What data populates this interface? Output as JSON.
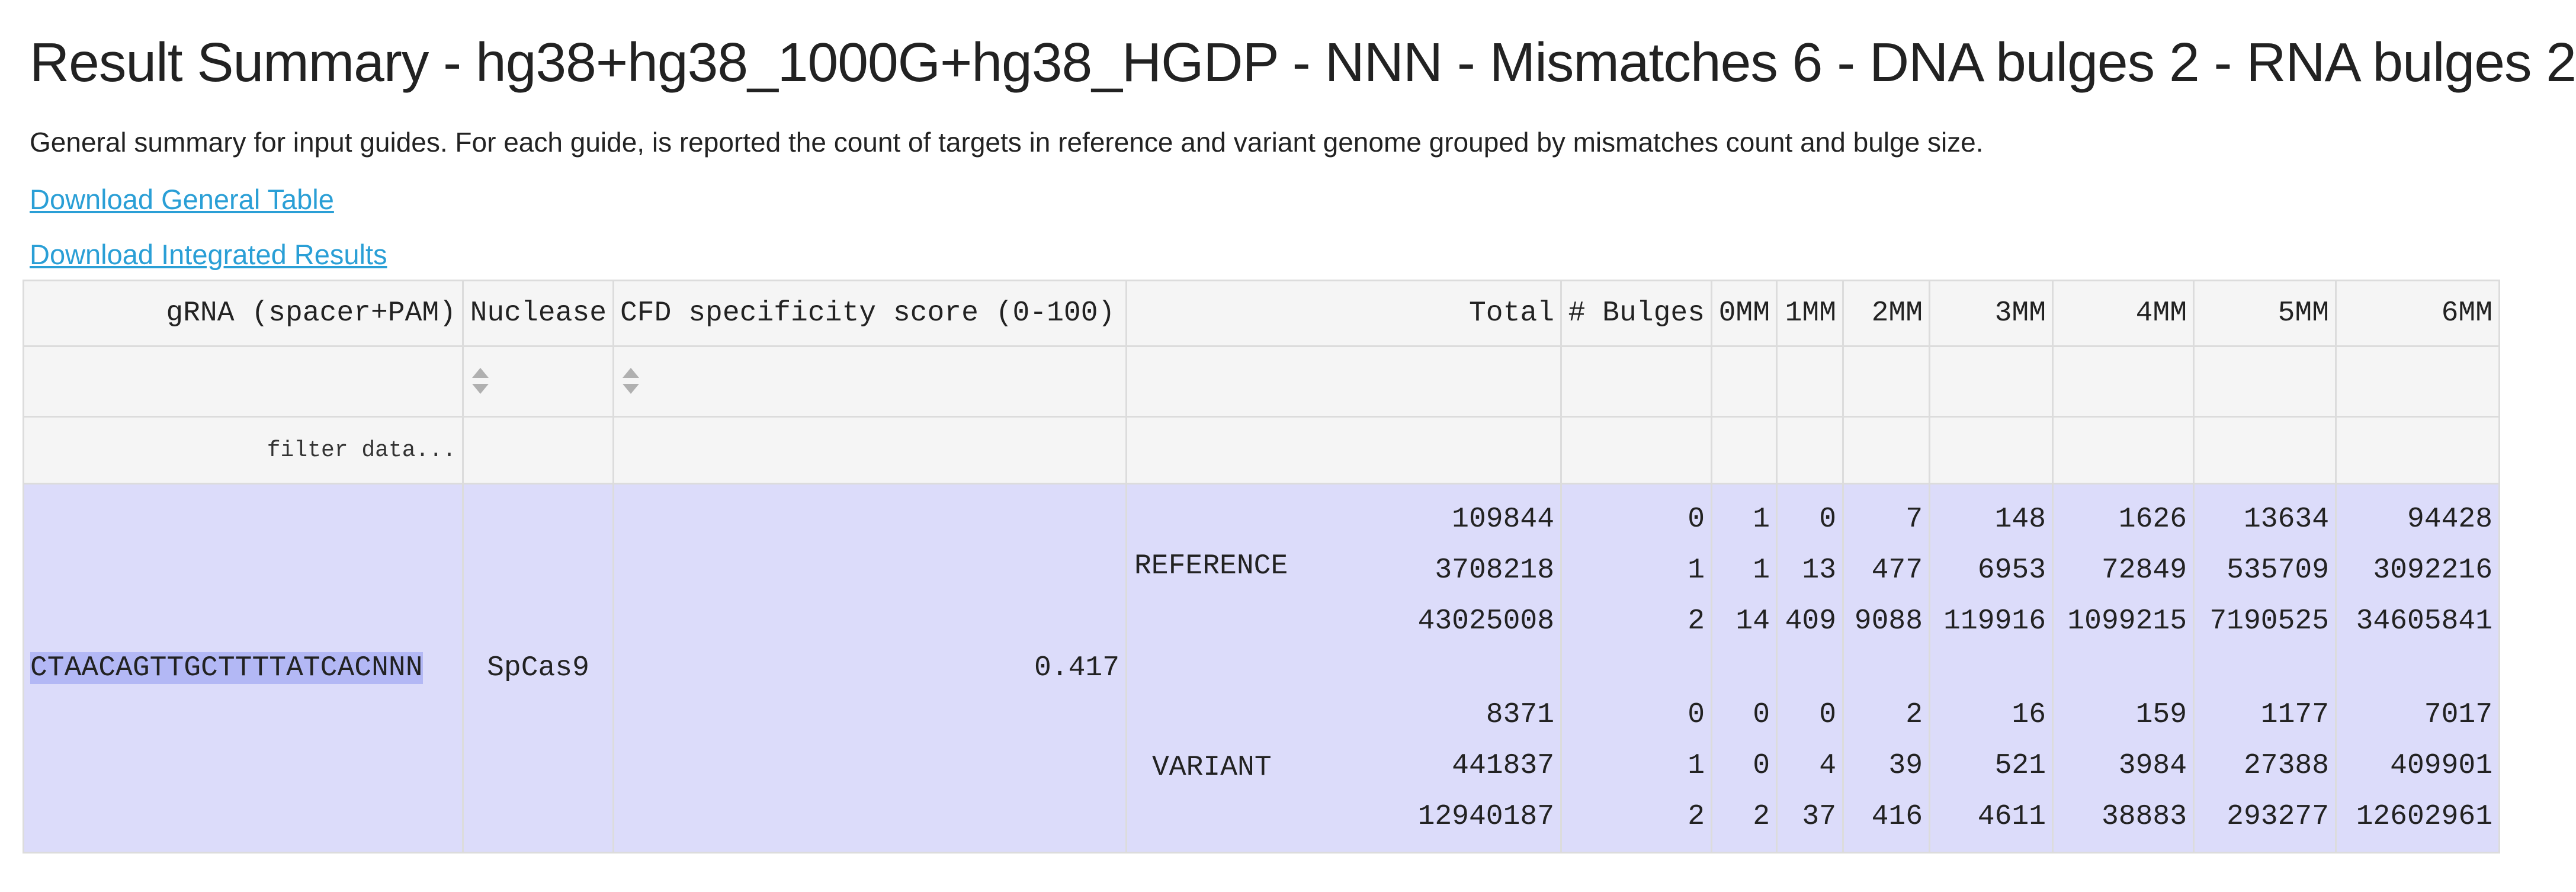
{
  "title": "Result Summary - hg38+hg38_1000G+hg38_HGDP - NNN - Mismatches 6 - DNA bulges 2 - RNA bulges 2",
  "description": "General summary for input guides. For each guide, is reported the count of targets in reference and variant genome grouped by mismatches count and bulge size.",
  "links": {
    "general_table": "Download General Table",
    "integrated_results": "Download Integrated Results"
  },
  "colors": {
    "link": "#2a9fd6",
    "row_background": "#dcdcfa",
    "grna_highlight": "#b3b8f5",
    "header_background": "#f5f5f5"
  },
  "table": {
    "headers": {
      "grna": "gRNA (spacer+PAM)",
      "nuclease": "Nuclease",
      "cfd": "CFD specificity score (0-100)",
      "total": "Total",
      "bulges": "# Bulges",
      "mm0": "0MM",
      "mm1": "1MM",
      "mm2": "2MM",
      "mm3": "3MM",
      "mm4": "4MM",
      "mm5": "5MM",
      "mm6": "6MM"
    },
    "filter_placeholder": "filter data...",
    "row": {
      "grna": "CTAACAGTTGCTTTTATCACNNN",
      "nuclease": "SpCas9",
      "cfd": "0.417",
      "reference_label": "REFERENCE",
      "variant_label": "VARIANT",
      "reference": {
        "total": [
          "109844",
          "3708218",
          "43025008"
        ],
        "bulges": [
          "0",
          "1",
          "2"
        ],
        "mm0": [
          "1",
          "1",
          "14"
        ],
        "mm1": [
          "0",
          "13",
          "409"
        ],
        "mm2": [
          "7",
          "477",
          "9088"
        ],
        "mm3": [
          "148",
          "6953",
          "119916"
        ],
        "mm4": [
          "1626",
          "72849",
          "1099215"
        ],
        "mm5": [
          "13634",
          "535709",
          "7190525"
        ],
        "mm6": [
          "94428",
          "3092216",
          "34605841"
        ]
      },
      "variant": {
        "total": [
          "8371",
          "441837",
          "12940187"
        ],
        "bulges": [
          "0",
          "1",
          "2"
        ],
        "mm0": [
          "0",
          "0",
          "2"
        ],
        "mm1": [
          "0",
          "4",
          "37"
        ],
        "mm2": [
          "2",
          "39",
          "416"
        ],
        "mm3": [
          "16",
          "521",
          "4611"
        ],
        "mm4": [
          "159",
          "3984",
          "38883"
        ],
        "mm5": [
          "1177",
          "27388",
          "293277"
        ],
        "mm6": [
          "7017",
          "409901",
          "12602961"
        ]
      }
    }
  }
}
